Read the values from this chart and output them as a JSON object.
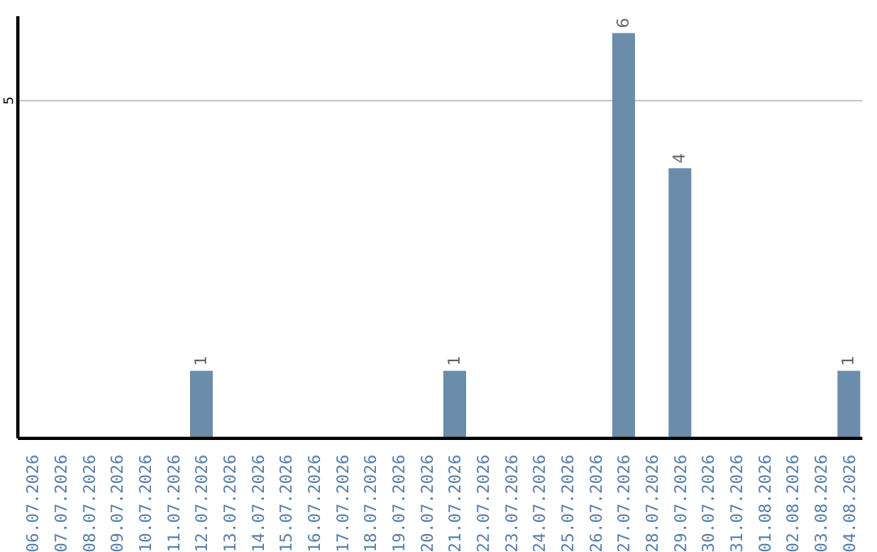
{
  "chart_data": {
    "type": "bar",
    "categories": [
      "06.07.2026",
      "07.07.2026",
      "08.07.2026",
      "09.07.2026",
      "10.07.2026",
      "11.07.2026",
      "12.07.2026",
      "13.07.2026",
      "14.07.2026",
      "15.07.2026",
      "16.07.2026",
      "17.07.2026",
      "18.07.2026",
      "19.07.2026",
      "20.07.2026",
      "21.07.2026",
      "22.07.2026",
      "23.07.2026",
      "24.07.2026",
      "25.07.2026",
      "26.07.2026",
      "27.07.2026",
      "28.07.2026",
      "29.07.2026",
      "30.07.2026",
      "31.07.2026",
      "01.08.2026",
      "02.08.2026",
      "03.08.2026",
      "04.08.2026"
    ],
    "values": [
      0,
      0,
      0,
      0,
      0,
      0,
      1,
      0,
      0,
      0,
      0,
      0,
      0,
      0,
      0,
      1,
      0,
      0,
      0,
      0,
      0,
      6,
      0,
      4,
      0,
      0,
      0,
      0,
      0,
      1
    ],
    "value_labels": [
      null,
      null,
      null,
      null,
      null,
      null,
      "1",
      null,
      null,
      null,
      null,
      null,
      null,
      null,
      null,
      "1",
      null,
      null,
      null,
      null,
      null,
      "6",
      null,
      "4",
      null,
      null,
      null,
      null,
      null,
      "1"
    ],
    "color": "#6b8caa",
    "ylim": [
      0,
      6.25
    ],
    "yticks": [
      5
    ],
    "grid": "y"
  }
}
